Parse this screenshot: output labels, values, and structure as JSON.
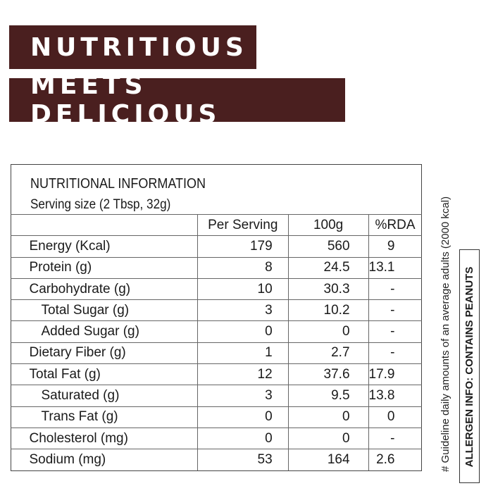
{
  "banners": {
    "line1": "NUTRITIOUS",
    "line2": "MEETS DELICIOUS"
  },
  "panel": {
    "title": "NUTRITIONAL INFORMATION",
    "serving": "Serving size (2 Tbsp, 32g)",
    "headers": {
      "per_serving": "Per Serving",
      "per_100g": "100g",
      "rda": "%RDA"
    },
    "rows": [
      {
        "label": "Energy (Kcal)",
        "per_serving": "179",
        "per_100g": "560",
        "rda": "9"
      },
      {
        "label": "Protein (g)",
        "per_serving": "8",
        "per_100g": "24.5",
        "rda": "13.1"
      },
      {
        "label": "Carbohydrate (g)",
        "per_serving": "10",
        "per_100g": "30.3",
        "rda": "-"
      },
      {
        "label": "Total Sugar (g)",
        "per_serving": "3",
        "per_100g": "10.2",
        "rda": "-"
      },
      {
        "label": "Added Sugar (g)",
        "per_serving": "0",
        "per_100g": "0",
        "rda": "-"
      },
      {
        "label": "Dietary Fiber (g)",
        "per_serving": "1",
        "per_100g": "2.7",
        "rda": "-"
      },
      {
        "label": "Total Fat (g)",
        "per_serving": "12",
        "per_100g": "37.6",
        "rda": "17.9"
      },
      {
        "label": "Saturated (g)",
        "per_serving": "3",
        "per_100g": "9.5",
        "rda": "13.8"
      },
      {
        "label": "Trans Fat (g)",
        "per_serving": "0",
        "per_100g": "0",
        "rda": "0"
      },
      {
        "label": "Cholesterol (mg)",
        "per_serving": "0",
        "per_100g": "0",
        "rda": "-"
      },
      {
        "label": "Sodium (mg)",
        "per_serving": "53",
        "per_100g": "164",
        "rda": "2.6"
      }
    ]
  },
  "side_note": "# Guideline daily amounts of an average adults (2000 kcal)",
  "allergen": "ALLERGEN INFO: CONTAINS PEANUTS"
}
